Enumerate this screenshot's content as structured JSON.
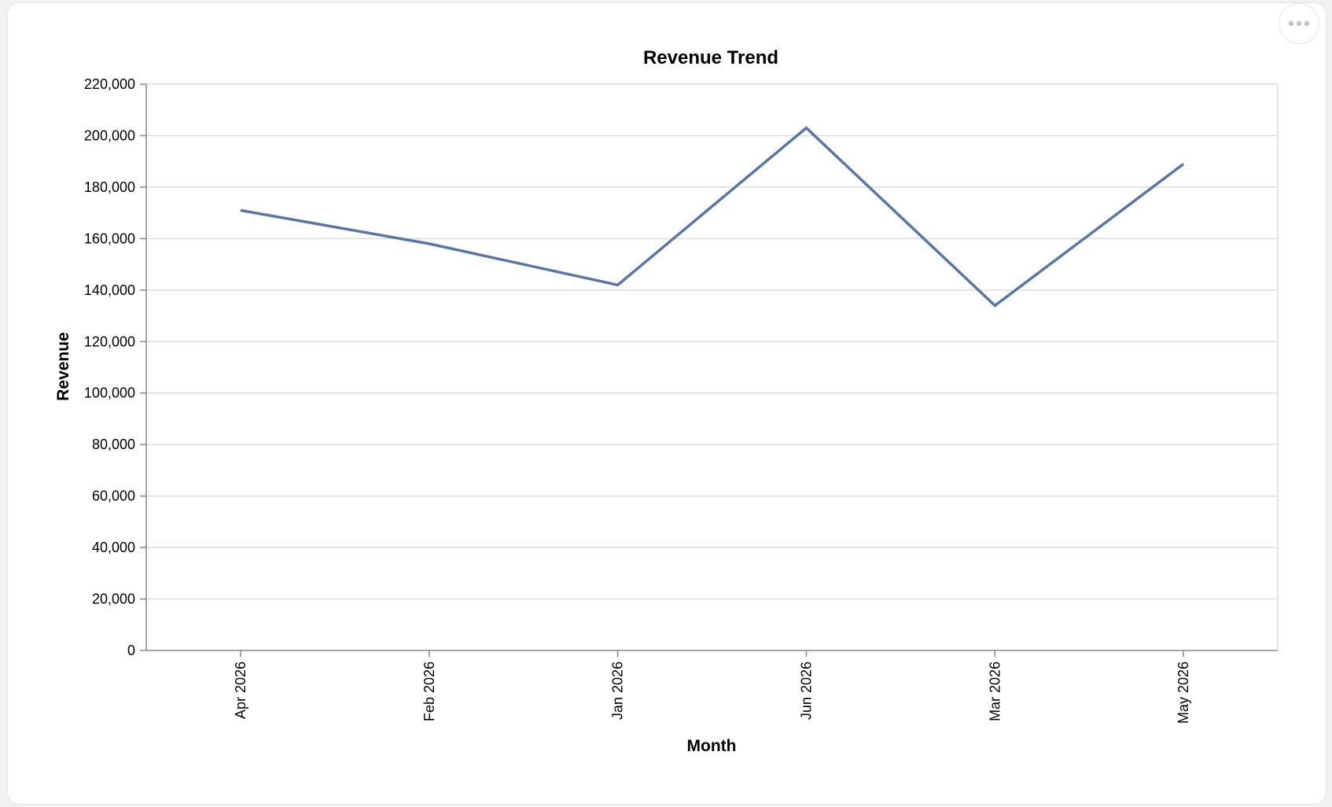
{
  "menu": {
    "icon": "more-horizontal-icon"
  },
  "colors": {
    "line": "#5b77a0",
    "grid": "#dddddd",
    "axis": "#888888",
    "text": "#000000"
  },
  "chart_data": {
    "type": "line",
    "title": "Revenue Trend",
    "xlabel": "Month",
    "ylabel": "Revenue",
    "categories": [
      "Apr 2026",
      "Feb 2026",
      "Jan 2026",
      "Jun 2026",
      "Mar 2026",
      "May 2026"
    ],
    "values": [
      171000,
      158000,
      142000,
      203000,
      134000,
      189000
    ],
    "ylim": [
      0,
      220000
    ],
    "yticks": [
      0,
      20000,
      40000,
      60000,
      80000,
      100000,
      120000,
      140000,
      160000,
      180000,
      200000,
      220000
    ],
    "ytick_labels": [
      "0",
      "20,000",
      "40,000",
      "60,000",
      "80,000",
      "100,000",
      "120,000",
      "140,000",
      "160,000",
      "180,000",
      "200,000",
      "220,000"
    ],
    "grid": true,
    "legend": "none"
  }
}
